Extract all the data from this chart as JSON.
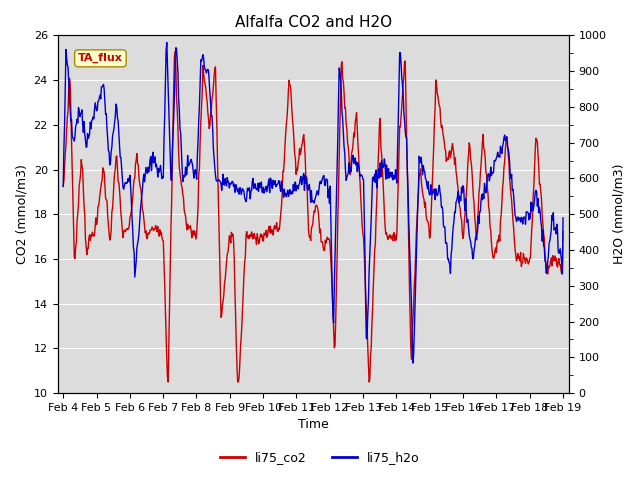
{
  "title": "Alfalfa CO2 and H2O",
  "xlabel": "Time",
  "ylabel_left": "CO2 (mmol/m3)",
  "ylabel_right": "H2O (mmol/m3)",
  "annotation_text": "TA_flux",
  "xlim_days": [
    3.83,
    19.17
  ],
  "ylim_left": [
    10,
    26
  ],
  "ylim_right": [
    0,
    1000
  ],
  "yticks_left": [
    10,
    12,
    14,
    16,
    18,
    20,
    22,
    24,
    26
  ],
  "yticks_right": [
    0,
    100,
    200,
    300,
    400,
    500,
    600,
    700,
    800,
    900,
    1000
  ],
  "xtick_positions": [
    4,
    5,
    6,
    7,
    8,
    9,
    10,
    11,
    12,
    13,
    14,
    15,
    16,
    17,
    18,
    19
  ],
  "xtick_labels": [
    "Feb 4",
    "Feb 5",
    "Feb 6",
    "Feb 7",
    "Feb 8",
    "Feb 9",
    "Feb 10",
    "Feb 11",
    "Feb 12",
    "Feb 13",
    "Feb 14",
    "Feb 15",
    "Feb 16",
    "Feb 17",
    "Feb 18",
    "Feb 19"
  ],
  "co2_color": "#cc0000",
  "h2o_color": "#0000cc",
  "line_width": 1.0,
  "bg_color": "#dcdcdc",
  "grid_color": "#ffffff",
  "legend_labels": [
    "li75_co2",
    "li75_h2o"
  ],
  "legend_colors": [
    "#cc0000",
    "#0000cc"
  ],
  "title_fontsize": 11,
  "axis_label_fontsize": 9,
  "tick_fontsize": 8
}
